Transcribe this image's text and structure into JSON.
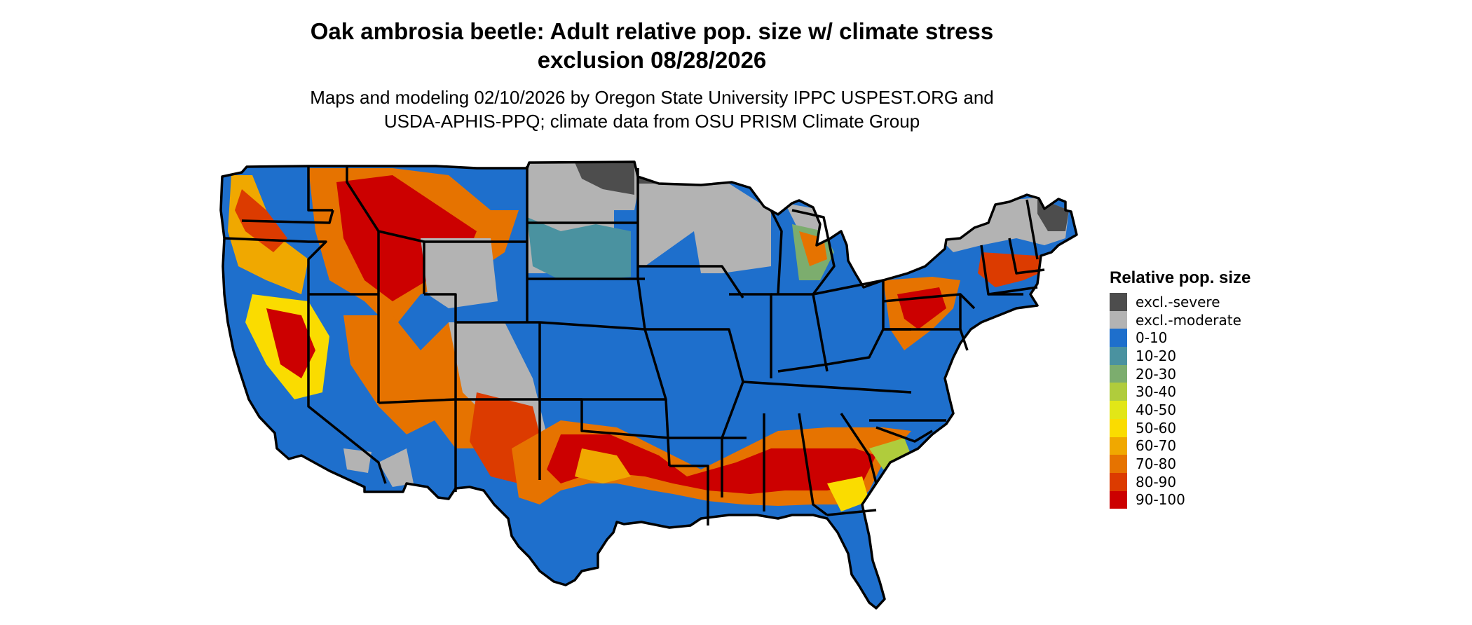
{
  "map": {
    "title_line1": "Oak ambrosia beetle: Adult relative pop. size w/ climate stress",
    "title_line2": "exclusion 08/28/2026",
    "subtitle_line1": "Maps and modeling 02/10/2026 by Oregon State University IPPC USPEST.ORG and",
    "subtitle_line2": "USDA-APHIS-PPQ; climate data from OSU PRISM Climate Group",
    "region": "conterminous-united-states"
  },
  "legend": {
    "title": "Relative pop. size",
    "items": [
      {
        "label": "excl.-severe",
        "color": "#4d4d4d"
      },
      {
        "label": "excl.-moderate",
        "color": "#b3b3b3"
      },
      {
        "label": "0-10",
        "color": "#1e6fcc"
      },
      {
        "label": "10-20",
        "color": "#4a92a0"
      },
      {
        "label": "20-30",
        "color": "#7cad6e"
      },
      {
        "label": "30-40",
        "color": "#b0cc3c"
      },
      {
        "label": "40-50",
        "color": "#e2e617"
      },
      {
        "label": "50-60",
        "color": "#fadc00"
      },
      {
        "label": "60-70",
        "color": "#f0a800"
      },
      {
        "label": "70-80",
        "color": "#e67300"
      },
      {
        "label": "80-90",
        "color": "#dc3b00"
      },
      {
        "label": "90-100",
        "color": "#cc0000"
      }
    ]
  },
  "colors": {
    "background": "#ffffff",
    "state_border": "#000000",
    "text": "#000000"
  }
}
